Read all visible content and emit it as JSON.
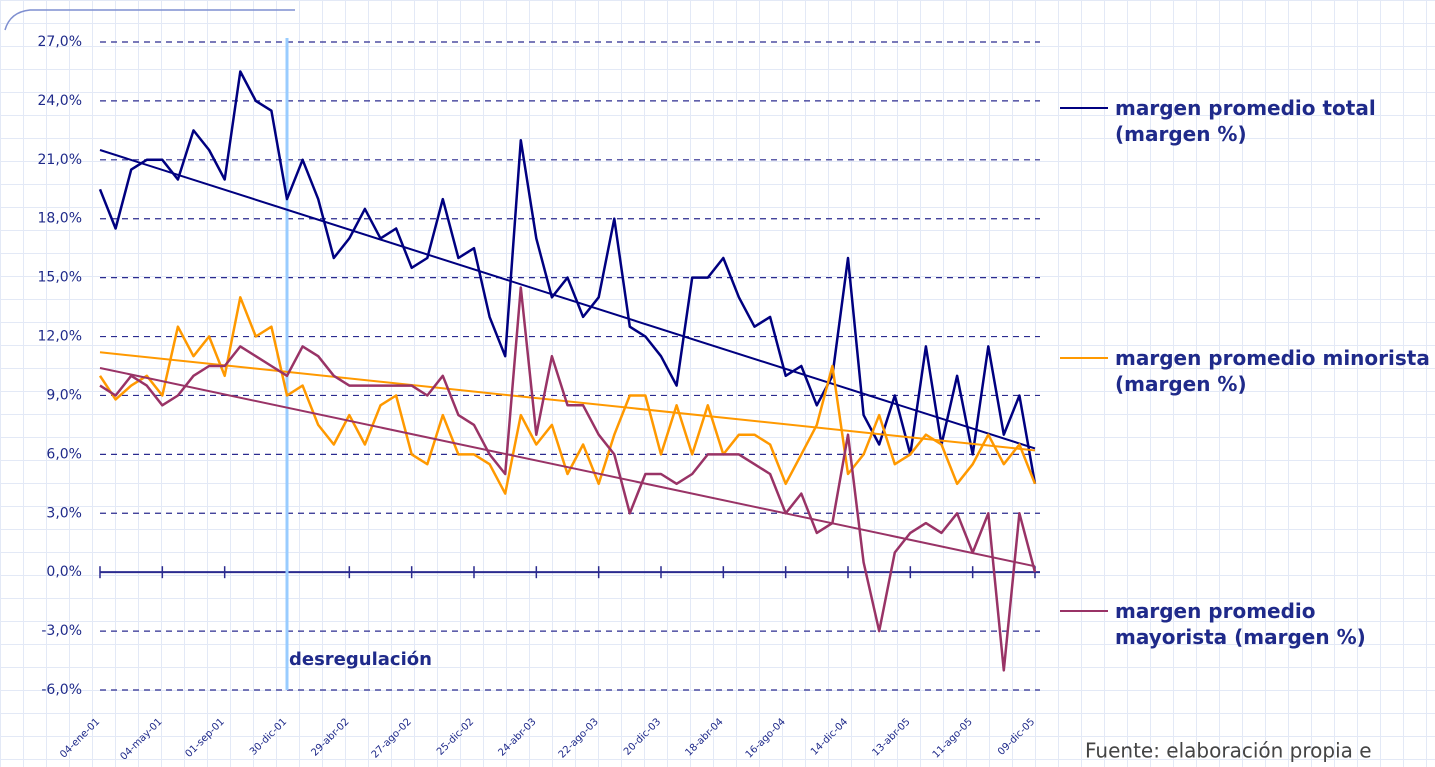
{
  "chart_data": {
    "type": "line",
    "categories": [
      "04-ene-01",
      null,
      null,
      null,
      "04-may-01",
      null,
      null,
      null,
      "01-sep-01",
      null,
      null,
      null,
      "30-dic-01",
      null,
      null,
      null,
      "29-abr-02",
      null,
      null,
      null,
      "27-ago-02",
      null,
      null,
      null,
      "25-dic-02",
      null,
      null,
      null,
      "24-abr-03",
      null,
      null,
      null,
      "22-ago-03",
      null,
      null,
      null,
      "20-dic-03",
      null,
      null,
      null,
      "18-abr-04",
      null,
      null,
      null,
      "16-ago-04",
      null,
      null,
      null,
      "14-dic-04",
      null,
      null,
      null,
      "13-abr-05",
      null,
      null,
      null,
      "11-ago-05",
      null,
      null,
      null,
      "09-dic-05"
    ],
    "series": [
      {
        "name": "margen promedio total (margen %)",
        "color": "#000080",
        "trend": [
          21.5,
          6.3
        ],
        "values": [
          19.5,
          17.5,
          20.5,
          21,
          21,
          20,
          22.5,
          21.5,
          20,
          25.5,
          24,
          23.5,
          19,
          21,
          19,
          16,
          17,
          18.5,
          17,
          17.5,
          15.5,
          16,
          19,
          16,
          16.5,
          13,
          11,
          22,
          17,
          14,
          15,
          13,
          14,
          18,
          12.5,
          12,
          11,
          9.5,
          15,
          15,
          16,
          14,
          12.5,
          13,
          10,
          10.5,
          8.5,
          10,
          16,
          8,
          6.5,
          9,
          6,
          11.5,
          6.5,
          10,
          6,
          11.5,
          7,
          9,
          4.5
        ]
      },
      {
        "name": "margen promedio minorista (margen %)",
        "color": "#FF9900",
        "trend": [
          11.2,
          6.2
        ],
        "values": [
          10,
          8.8,
          9.5,
          10,
          9,
          12.5,
          11,
          12,
          10,
          14,
          12,
          12.5,
          9,
          9.5,
          7.5,
          6.5,
          8,
          6.5,
          8.5,
          9,
          6,
          5.5,
          8,
          6,
          6,
          5.5,
          4,
          8,
          6.5,
          7.5,
          5,
          6.5,
          4.5,
          7,
          9,
          9,
          6,
          8.5,
          6,
          8.5,
          6,
          7,
          7,
          6.5,
          4.5,
          6,
          7.5,
          10.5,
          5,
          6,
          8,
          5.5,
          6,
          7,
          6.5,
          4.5,
          5.5,
          7,
          5.5,
          6.5,
          4.5
        ]
      },
      {
        "name": "margen promedio mayorista (margen %)",
        "color": "#993366",
        "trend": [
          10.4,
          0.3
        ],
        "values": [
          9.5,
          9,
          10,
          9.5,
          8.5,
          9,
          10,
          10.5,
          10.5,
          11.5,
          11,
          10.5,
          10,
          11.5,
          11,
          10,
          9.5,
          9.5,
          9.5,
          9.5,
          9.5,
          9,
          10,
          8,
          7.5,
          6,
          5,
          14.5,
          7,
          11,
          8.5,
          8.5,
          7,
          6,
          3,
          5,
          5,
          4.5,
          5,
          6,
          6,
          6,
          5.5,
          5,
          3,
          4,
          2,
          2.5,
          7,
          0.5,
          -3,
          1,
          2,
          2.5,
          2,
          3,
          1,
          3,
          -5,
          3,
          0
        ]
      }
    ],
    "ylim": [
      -6,
      27
    ],
    "yticks": [
      {
        "value": -6,
        "label": "-6,0%"
      },
      {
        "value": -3,
        "label": "-3,0%"
      },
      {
        "value": 0,
        "label": "0,0%"
      },
      {
        "value": 3,
        "label": "3,0%"
      },
      {
        "value": 6,
        "label": "6,0%"
      },
      {
        "value": 9,
        "label": "9,0%"
      },
      {
        "value": 12,
        "label": "12,0%"
      },
      {
        "value": 15,
        "label": "15,0%"
      },
      {
        "value": 18,
        "label": "18,0%"
      },
      {
        "value": 21,
        "label": "21,0%"
      },
      {
        "value": 24,
        "label": "24,0%"
      },
      {
        "value": 27,
        "label": "27,0%"
      }
    ],
    "grid": true,
    "annotation": {
      "text": "desregulación",
      "index": 12,
      "color": "#99CCFF"
    },
    "source": "Fuente: elaboración propia e"
  }
}
